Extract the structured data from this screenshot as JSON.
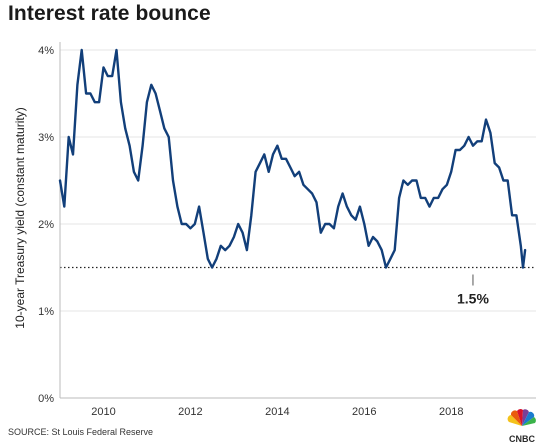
{
  "title": "Interest rate bounce",
  "source": "SOURCE: St Louis Federal Reserve",
  "logo_text": "CNBC",
  "colors": {
    "line": "#123f7a",
    "text": "#222222",
    "axis": "#bbbbbb"
  },
  "chart_data": {
    "type": "line",
    "title": "Interest rate bounce",
    "ylabel": "10-year Treasury yield (constant maturity)",
    "xlabel": "",
    "xlim": [
      2009.0,
      2019.95
    ],
    "ylim": [
      0,
      4
    ],
    "yticks": [
      0,
      1,
      2,
      3,
      4
    ],
    "ytick_labels": [
      "0%",
      "1%",
      "2%",
      "3%",
      "4%"
    ],
    "xticks": [
      2010,
      2012,
      2014,
      2016,
      2018
    ],
    "xtick_labels": [
      "2010",
      "2012",
      "2014",
      "2016",
      "2018"
    ],
    "grid": "horizontal",
    "reference_line": {
      "value": 1.5,
      "style": "dotted"
    },
    "annotation": {
      "text": "1.5%",
      "x": 2018.5,
      "y": 1.5
    },
    "series": [
      {
        "x": [
          2009.0,
          2009.1,
          2009.2,
          2009.3,
          2009.4,
          2009.5,
          2009.6,
          2009.7,
          2009.8,
          2009.9,
          2010.0,
          2010.1,
          2010.2,
          2010.3,
          2010.4,
          2010.5,
          2010.6,
          2010.7,
          2010.8,
          2010.9,
          2011.0,
          2011.1,
          2011.2,
          2011.3,
          2011.4,
          2011.5,
          2011.6,
          2011.7,
          2011.8,
          2011.9,
          2012.0,
          2012.1,
          2012.2,
          2012.3,
          2012.4,
          2012.5,
          2012.6,
          2012.7,
          2012.8,
          2012.9,
          2013.0,
          2013.1,
          2013.2,
          2013.3,
          2013.4,
          2013.5,
          2013.6,
          2013.7,
          2013.8,
          2013.9,
          2014.0,
          2014.1,
          2014.2,
          2014.3,
          2014.4,
          2014.5,
          2014.6,
          2014.7,
          2014.8,
          2014.9,
          2015.0,
          2015.1,
          2015.2,
          2015.3,
          2015.4,
          2015.5,
          2015.6,
          2015.7,
          2015.8,
          2015.9,
          2016.0,
          2016.1,
          2016.2,
          2016.3,
          2016.4,
          2016.5,
          2016.6,
          2016.7,
          2016.8,
          2016.9,
          2017.0,
          2017.1,
          2017.2,
          2017.3,
          2017.4,
          2017.5,
          2017.6,
          2017.7,
          2017.8,
          2017.9,
          2018.0,
          2018.1,
          2018.2,
          2018.3,
          2018.4,
          2018.5,
          2018.6,
          2018.7,
          2018.8,
          2018.9,
          2019.0,
          2019.1,
          2019.2,
          2019.3,
          2019.4,
          2019.5,
          2019.6,
          2019.65,
          2019.7
        ],
        "values": [
          2.5,
          2.2,
          3.0,
          2.8,
          3.6,
          4.0,
          3.5,
          3.5,
          3.4,
          3.4,
          3.8,
          3.7,
          3.7,
          4.0,
          3.4,
          3.1,
          2.9,
          2.6,
          2.5,
          2.9,
          3.4,
          3.6,
          3.5,
          3.3,
          3.1,
          3.0,
          2.5,
          2.2,
          2.0,
          2.0,
          1.95,
          2.0,
          2.2,
          1.9,
          1.6,
          1.5,
          1.6,
          1.75,
          1.7,
          1.75,
          1.85,
          2.0,
          1.9,
          1.7,
          2.1,
          2.6,
          2.7,
          2.8,
          2.6,
          2.8,
          2.9,
          2.75,
          2.75,
          2.65,
          2.55,
          2.6,
          2.45,
          2.4,
          2.35,
          2.25,
          1.9,
          2.0,
          2.0,
          1.95,
          2.2,
          2.35,
          2.2,
          2.1,
          2.05,
          2.2,
          2.0,
          1.75,
          1.85,
          1.8,
          1.7,
          1.5,
          1.6,
          1.7,
          2.3,
          2.5,
          2.45,
          2.5,
          2.5,
          2.3,
          2.3,
          2.2,
          2.3,
          2.3,
          2.4,
          2.45,
          2.6,
          2.85,
          2.85,
          2.9,
          3.0,
          2.9,
          2.95,
          2.95,
          3.2,
          3.05,
          2.7,
          2.65,
          2.5,
          2.5,
          2.1,
          2.1,
          1.75,
          1.5,
          1.7
        ]
      }
    ]
  }
}
